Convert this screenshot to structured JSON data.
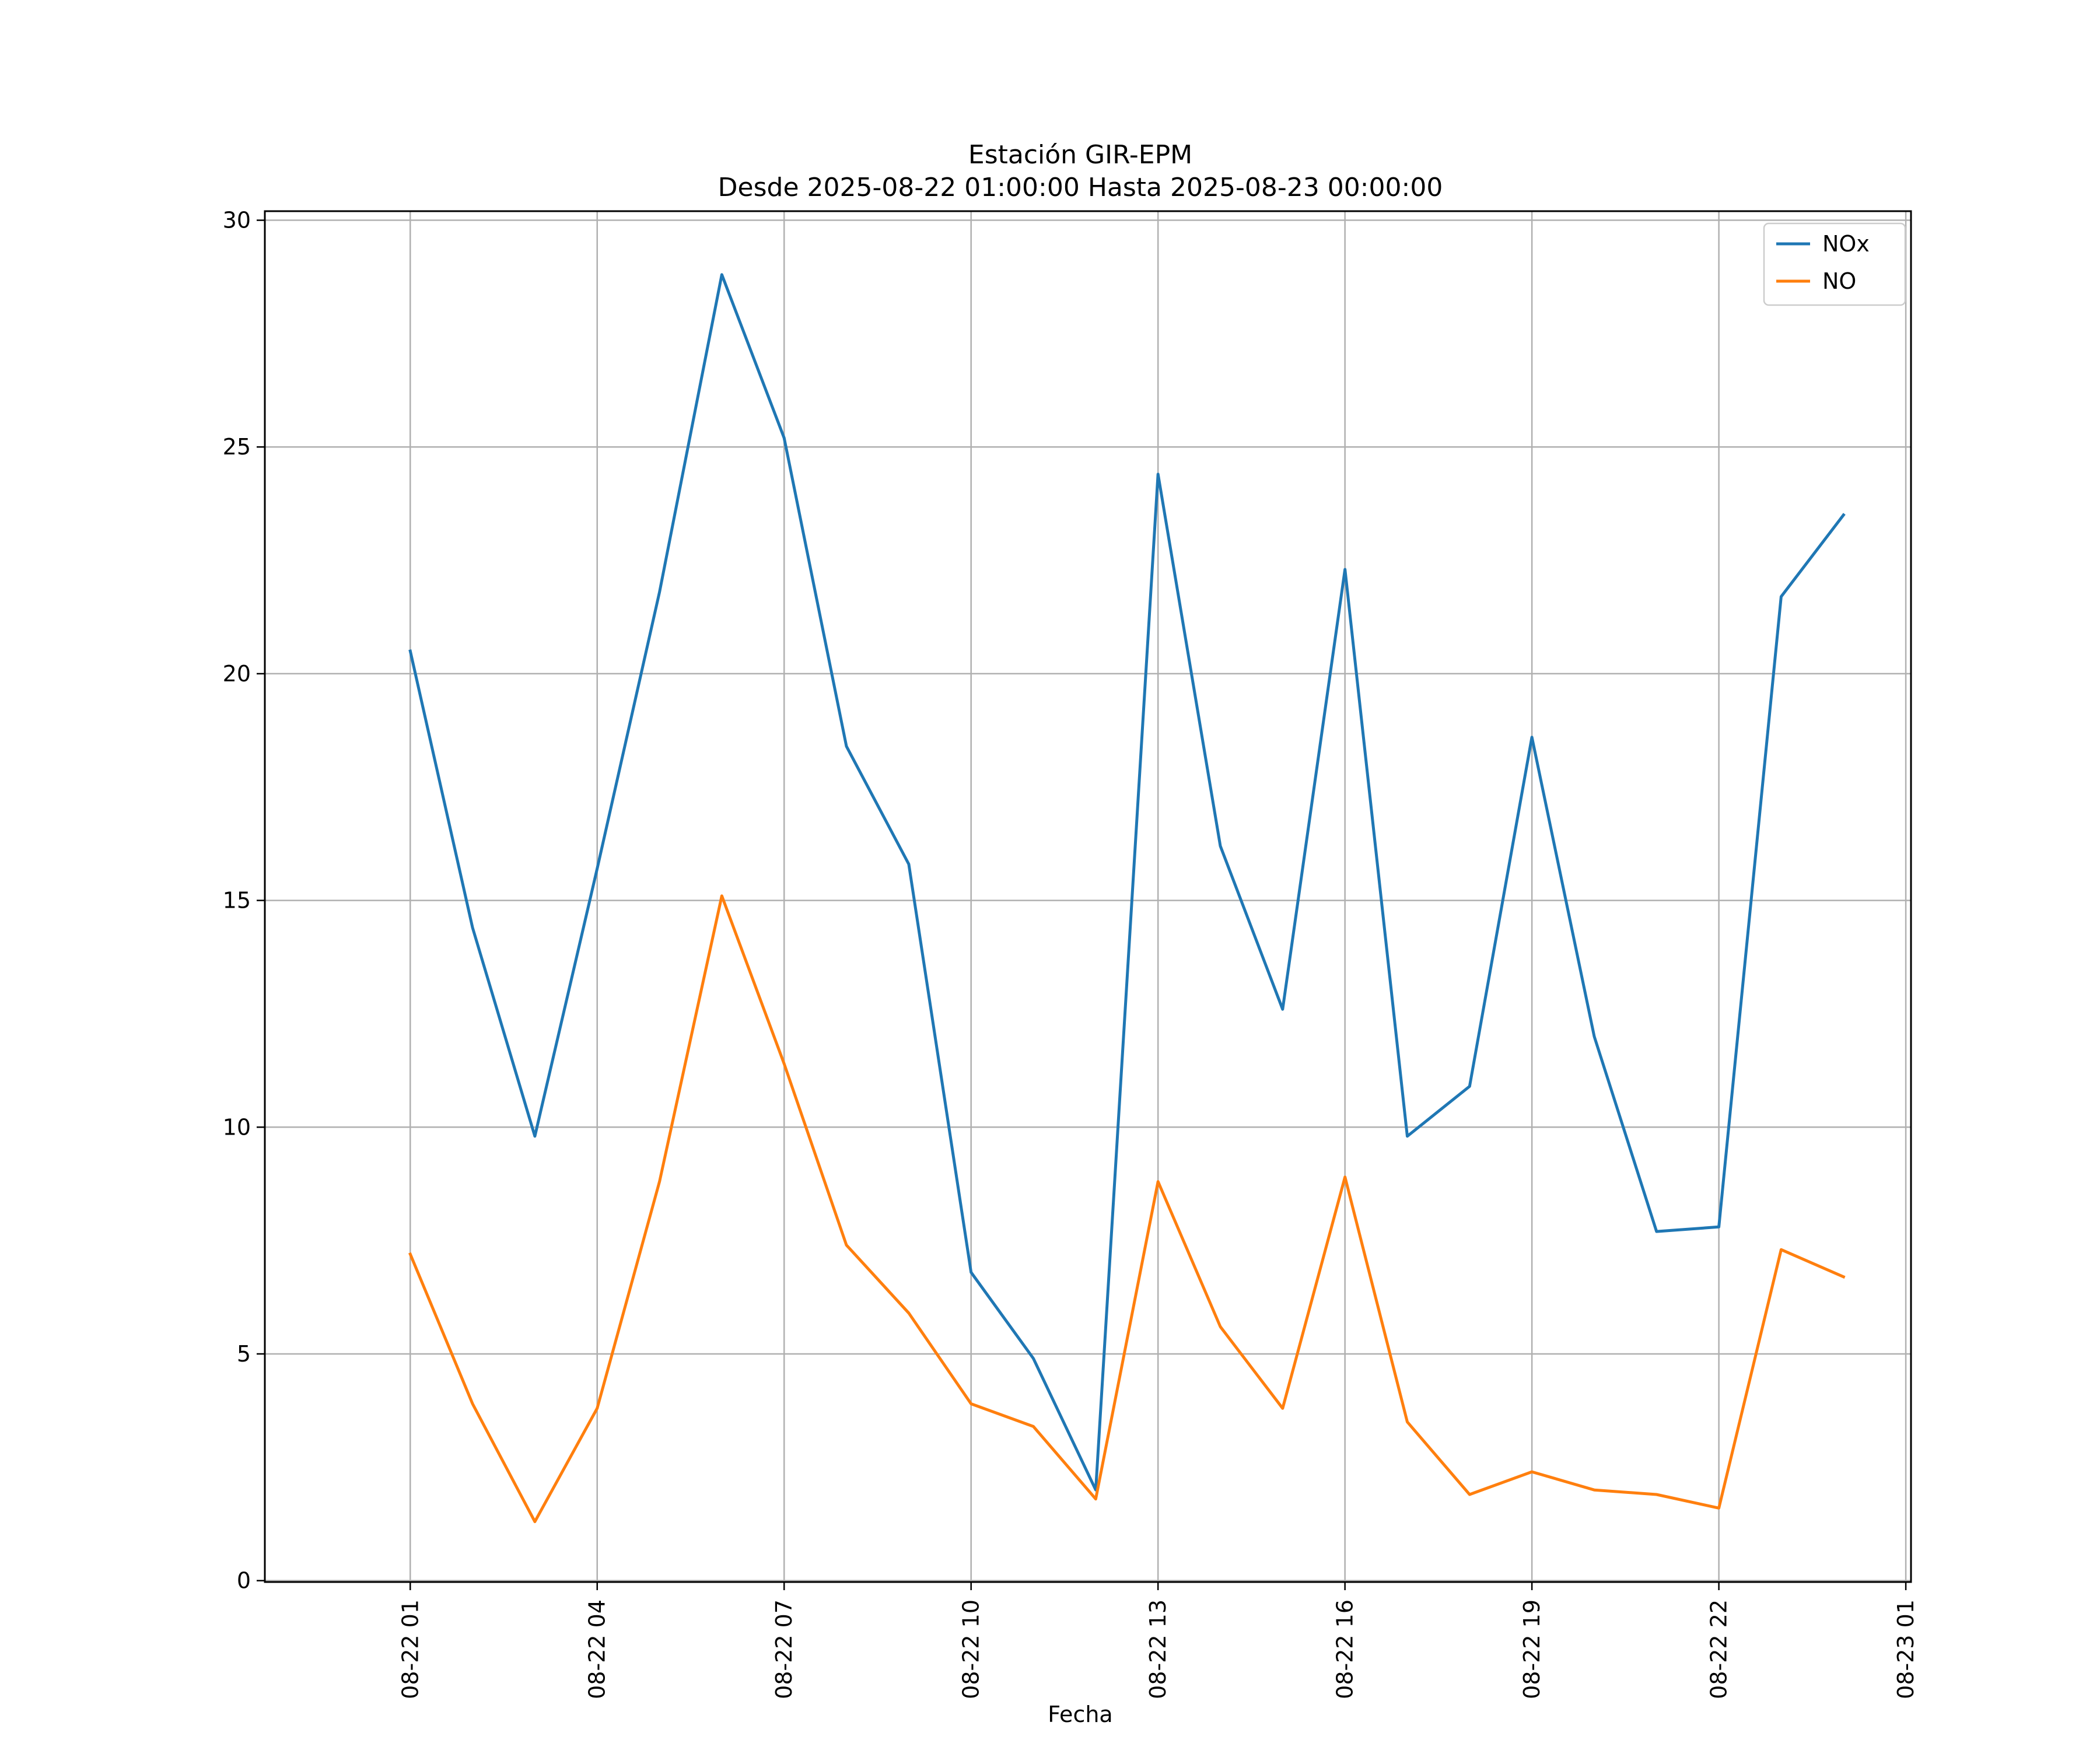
{
  "chart_data": {
    "type": "line",
    "title": "Estación GIR-EPM",
    "subtitle": "Desde 2025-08-22 01:00:00 Hasta 2025-08-23 00:00:00",
    "xlabel": "Fecha",
    "ylabel": "",
    "x": [
      "2025-08-22 01:00",
      "2025-08-22 02:00",
      "2025-08-22 03:00",
      "2025-08-22 04:00",
      "2025-08-22 05:00",
      "2025-08-22 06:00",
      "2025-08-22 07:00",
      "2025-08-22 08:00",
      "2025-08-22 09:00",
      "2025-08-22 10:00",
      "2025-08-22 11:00",
      "2025-08-22 12:00",
      "2025-08-22 13:00",
      "2025-08-22 14:00",
      "2025-08-22 15:00",
      "2025-08-22 16:00",
      "2025-08-22 17:00",
      "2025-08-22 18:00",
      "2025-08-22 19:00",
      "2025-08-22 20:00",
      "2025-08-22 21:00",
      "2025-08-22 22:00",
      "2025-08-22 23:00",
      "2025-08-23 00:00"
    ],
    "series": [
      {
        "name": "NOx",
        "color": "#1f77b4",
        "values": [
          20.5,
          14.4,
          9.8,
          15.7,
          21.8,
          28.8,
          25.2,
          18.4,
          15.8,
          6.8,
          4.9,
          2.0,
          24.4,
          16.2,
          12.6,
          22.3,
          9.8,
          10.9,
          18.6,
          12.0,
          7.7,
          7.8,
          21.7,
          23.5
        ]
      },
      {
        "name": "NO",
        "color": "#ff7f0e",
        "values": [
          7.2,
          3.9,
          1.3,
          3.8,
          8.8,
          15.1,
          11.4,
          7.4,
          5.9,
          3.9,
          3.4,
          1.8,
          8.8,
          5.6,
          3.8,
          8.9,
          3.5,
          1.9,
          2.4,
          2.0,
          1.9,
          1.6,
          7.3,
          6.7
        ]
      }
    ],
    "xticks": [
      "08-22 01",
      "08-22 04",
      "08-22 07",
      "08-22 10",
      "08-22 13",
      "08-22 16",
      "08-22 19",
      "08-22 22",
      "08-23 01"
    ],
    "yticks": [
      "0",
      "5",
      "10",
      "15",
      "20",
      "25",
      "30"
    ],
    "xlim": [
      "2025-08-21 22:40",
      "2025-08-23 01:05"
    ],
    "ylim": [
      -0.03,
      30.2
    ],
    "grid": true,
    "legend": "top-right"
  }
}
